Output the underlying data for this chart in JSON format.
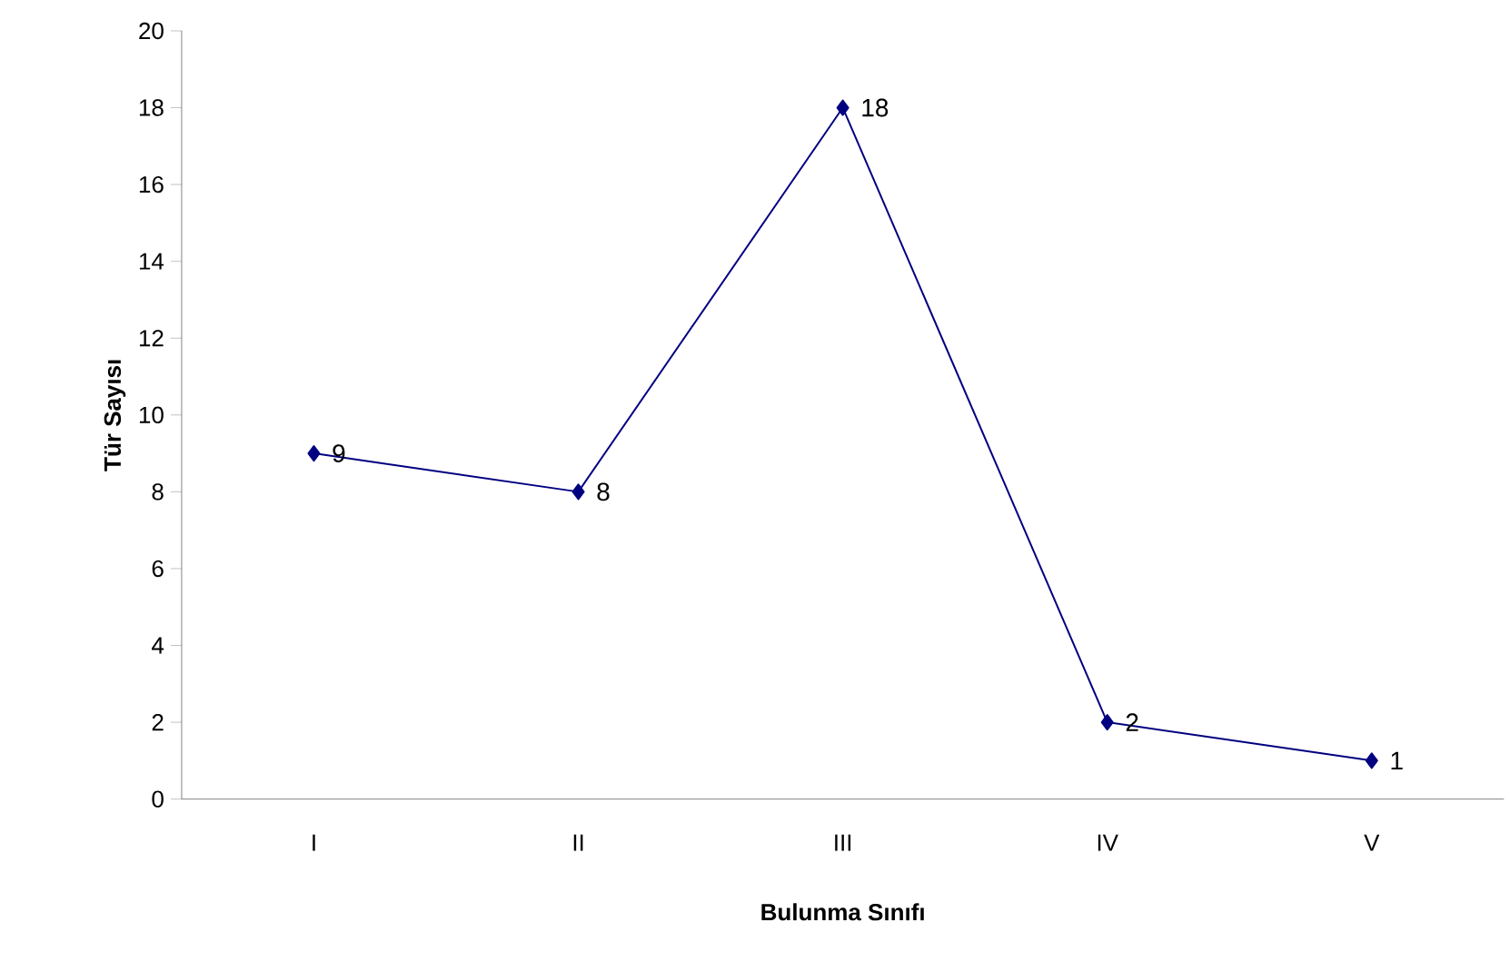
{
  "chart_data": {
    "type": "line",
    "xlabel": "Bulunma Sınıfı",
    "ylabel": "Tür Sayısı",
    "categories": [
      "I",
      "II",
      "III",
      "IV",
      "V"
    ],
    "series": [
      {
        "color": "#000080",
        "values": [
          9,
          8,
          18,
          2,
          1
        ]
      }
    ],
    "ylim": [
      0,
      20
    ],
    "yticks": [
      0,
      2,
      4,
      6,
      8,
      10,
      12,
      14,
      16,
      18,
      20
    ],
    "marker": "diamond",
    "line_style": "solid",
    "data_labels": true,
    "grid": false
  }
}
